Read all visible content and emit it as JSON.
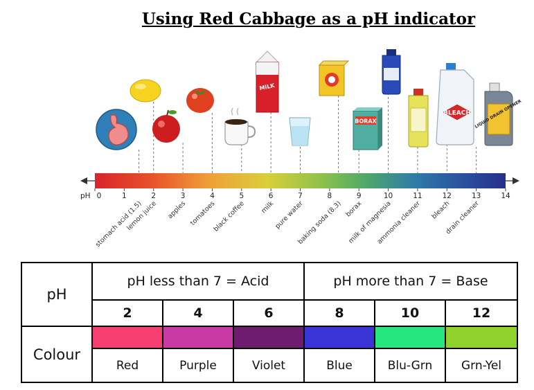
{
  "title": "Using Red Cabbage as a pH indicator",
  "scale": {
    "axis_label": "pH",
    "tick_labels": [
      "0",
      "1",
      "2",
      "3",
      "4",
      "5",
      "6",
      "7",
      "8",
      "9",
      "10",
      "11",
      "12",
      "13",
      "14"
    ],
    "ph_range": [
      0,
      14
    ],
    "items": [
      {
        "label": "stomach acid (1.5)",
        "ph": 1.5,
        "icon": "stomach-icon"
      },
      {
        "label": "lemon juice",
        "ph": 2,
        "icon": "lemon-icon"
      },
      {
        "label": "apples",
        "ph": 3,
        "icon": "apple-icon"
      },
      {
        "label": "tomatoes",
        "ph": 4,
        "icon": "tomato-icon"
      },
      {
        "label": "black coffee",
        "ph": 5,
        "icon": "coffee-cup-icon"
      },
      {
        "label": "milk",
        "ph": 6,
        "icon": "milk-carton-icon"
      },
      {
        "label": "pure water",
        "ph": 7,
        "icon": "water-glass-icon"
      },
      {
        "label": "baking soda (8.3)",
        "ph": 8.3,
        "icon": "baking-soda-box-icon"
      },
      {
        "label": "borax",
        "ph": 9,
        "icon": "borax-box-icon"
      },
      {
        "label": "milk of magnesia",
        "ph": 10,
        "icon": "magnesia-bottle-icon"
      },
      {
        "label": "ammonia cleaner",
        "ph": 11,
        "icon": "ammonia-bottle-icon"
      },
      {
        "label": "bleach",
        "ph": 12,
        "icon": "bleach-jug-icon"
      },
      {
        "label": "drain cleaner",
        "ph": 13,
        "icon": "drain-cleaner-icon"
      }
    ],
    "icon_text": {
      "milk": "MILK",
      "borax": "BORAX",
      "bleach": "BLEACH",
      "drain": "LIQUID DRAIN OPENER"
    }
  },
  "table": {
    "row_label_ph": "pH",
    "row_label_colour": "Colour",
    "acid_header": "pH less than 7 = Acid",
    "base_header": "pH more than 7 = Base",
    "entries": [
      {
        "ph": "2",
        "colour": "Red",
        "swatch": "#f43f70"
      },
      {
        "ph": "4",
        "colour": "Purple",
        "swatch": "#c93aa6"
      },
      {
        "ph": "6",
        "colour": "Violet",
        "swatch": "#6e1c6e"
      },
      {
        "ph": "8",
        "colour": "Blue",
        "swatch": "#3a33d6"
      },
      {
        "ph": "10",
        "colour": "Blu-Grn",
        "swatch": "#27e680"
      },
      {
        "ph": "12",
        "colour": "Grn-Yel",
        "swatch": "#8fd22c"
      }
    ]
  }
}
